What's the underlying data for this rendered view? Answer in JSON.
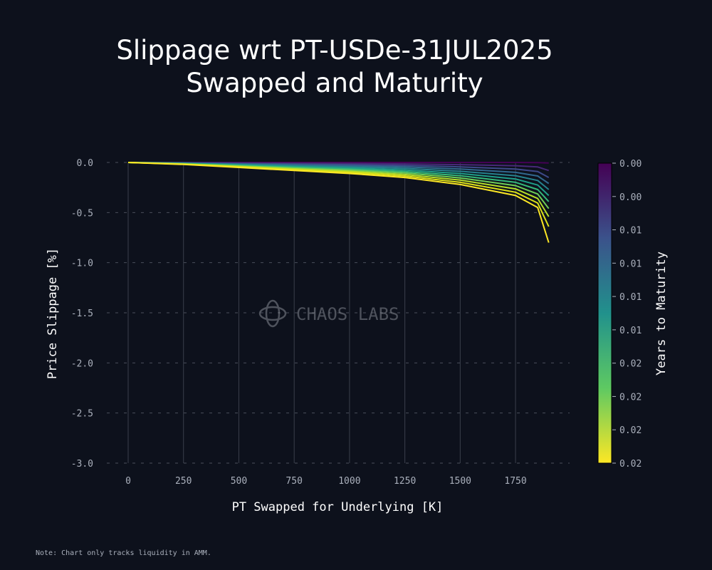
{
  "chart_data": {
    "type": "line",
    "title_line1": "Slippage wrt PT-USDe-31JUL2025",
    "title_line2": "Swapped and Maturity",
    "xlabel": "PT Swapped for Underlying [K]",
    "ylabel": "Price Slippage [%]",
    "xlim": [
      -100,
      1980
    ],
    "ylim": [
      -3.0,
      0.0
    ],
    "xticks": [
      "0",
      "250",
      "500",
      "750",
      "1000",
      "1250",
      "1500",
      "1750"
    ],
    "xtick_values": [
      0,
      250,
      500,
      750,
      1000,
      1250,
      1500,
      1750
    ],
    "yticks": [
      "0.0",
      "-0.5",
      "-1.0",
      "-1.5",
      "-2.0",
      "-2.5",
      "-3.0"
    ],
    "ytick_values": [
      0,
      -0.5,
      -1,
      -1.5,
      -2,
      -2.5,
      -3
    ],
    "grid": true,
    "x": [
      0,
      250,
      500,
      750,
      1000,
      1250,
      1500,
      1750,
      1850,
      1900
    ],
    "series": [
      {
        "name": "t0",
        "color": "#440154",
        "values": [
          0,
          0,
          0,
          0,
          0,
          0,
          0,
          0,
          -0.002,
          -0.005
        ]
      },
      {
        "name": "t1",
        "color": "#482878",
        "values": [
          0,
          -0.002,
          -0.005,
          -0.008,
          -0.011,
          -0.015,
          -0.022,
          -0.033,
          -0.045,
          -0.08
        ]
      },
      {
        "name": "t2",
        "color": "#3e4989",
        "values": [
          0,
          -0.004,
          -0.01,
          -0.016,
          -0.022,
          -0.03,
          -0.044,
          -0.066,
          -0.09,
          -0.15
        ]
      },
      {
        "name": "t3",
        "color": "#31688e",
        "values": [
          0,
          -0.006,
          -0.015,
          -0.024,
          -0.033,
          -0.045,
          -0.066,
          -0.099,
          -0.135,
          -0.21
        ]
      },
      {
        "name": "t4",
        "color": "#26828e",
        "values": [
          0,
          -0.008,
          -0.02,
          -0.032,
          -0.044,
          -0.06,
          -0.088,
          -0.132,
          -0.18,
          -0.27
        ]
      },
      {
        "name": "t5",
        "color": "#1f9e89",
        "values": [
          0,
          -0.01,
          -0.025,
          -0.04,
          -0.055,
          -0.075,
          -0.11,
          -0.165,
          -0.225,
          -0.33
        ]
      },
      {
        "name": "t6",
        "color": "#35b779",
        "values": [
          0,
          -0.012,
          -0.03,
          -0.048,
          -0.066,
          -0.09,
          -0.132,
          -0.198,
          -0.27,
          -0.39
        ]
      },
      {
        "name": "t7",
        "color": "#6ece58",
        "values": [
          0,
          -0.014,
          -0.035,
          -0.056,
          -0.077,
          -0.105,
          -0.154,
          -0.231,
          -0.315,
          -0.46
        ]
      },
      {
        "name": "t8",
        "color": "#b5de2b",
        "values": [
          0,
          -0.016,
          -0.04,
          -0.064,
          -0.088,
          -0.12,
          -0.176,
          -0.264,
          -0.36,
          -0.54
        ]
      },
      {
        "name": "t9",
        "color": "#dde318",
        "values": [
          0,
          -0.018,
          -0.045,
          -0.072,
          -0.099,
          -0.135,
          -0.198,
          -0.297,
          -0.405,
          -0.64
        ]
      },
      {
        "name": "t10",
        "color": "#fde725",
        "values": [
          0,
          -0.02,
          -0.05,
          -0.08,
          -0.11,
          -0.15,
          -0.22,
          -0.33,
          -0.45,
          -0.8
        ]
      }
    ],
    "colorbar": {
      "label": "Years to Maturity",
      "ticks": [
        "0.00",
        "0.00",
        "0.01",
        "0.01",
        "0.01",
        "0.01",
        "0.02",
        "0.02",
        "0.02",
        "0.02"
      ]
    },
    "watermark": "CHAOS LABS"
  },
  "note": "Note: Chart only tracks liquidity in AMM."
}
